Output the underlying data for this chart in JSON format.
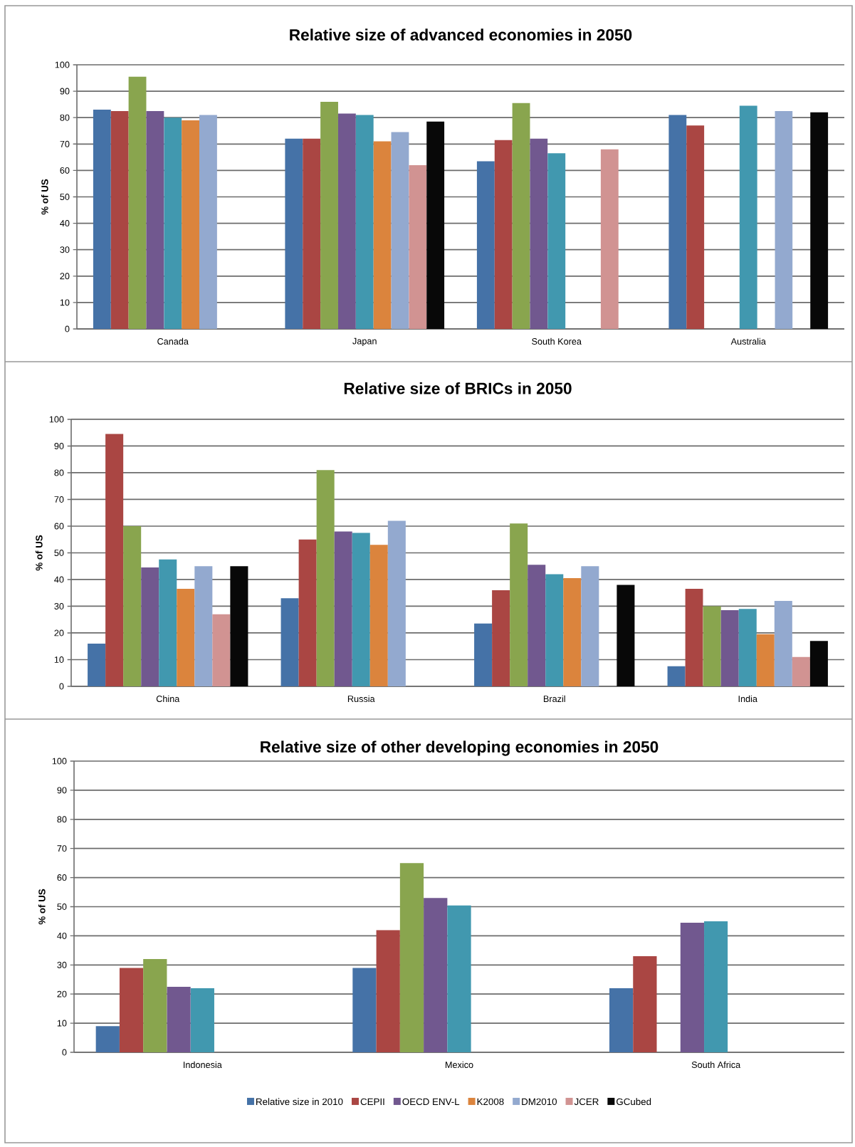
{
  "chart_data": [
    {
      "type": "bar",
      "title": "Relative size of advanced economies in 2050",
      "ylabel": "% of US",
      "categories": [
        "Canada",
        "Japan",
        "South Korea",
        "Australia"
      ],
      "ylim": [
        0,
        100
      ],
      "yticks": [
        0,
        10,
        20,
        30,
        40,
        50,
        60,
        70,
        80,
        90,
        100
      ],
      "grid": "y",
      "legend": false,
      "series": [
        {
          "color": "#4572a7",
          "values": [
            83,
            72,
            63.5,
            81
          ]
        },
        {
          "color": "#aa4643",
          "values": [
            82.5,
            72,
            71.5,
            77
          ]
        },
        {
          "color": "#89a54e",
          "values": [
            95.5,
            86,
            85.5,
            null
          ]
        },
        {
          "color": "#71588f",
          "values": [
            82.5,
            81.5,
            72,
            null
          ]
        },
        {
          "color": "#4198af",
          "values": [
            80,
            81,
            66.5,
            84.5
          ]
        },
        {
          "color": "#db843d",
          "values": [
            79,
            71,
            null,
            null
          ]
        },
        {
          "color": "#93a9cf",
          "values": [
            81,
            74.5,
            null,
            82.5
          ]
        },
        {
          "color": "#d19392",
          "values": [
            null,
            62,
            68,
            null
          ]
        },
        {
          "color": "#080808",
          "values": [
            null,
            78.5,
            null,
            82
          ]
        }
      ]
    },
    {
      "type": "bar",
      "title": "Relative size of BRICs in 2050",
      "ylabel": "% of US",
      "categories": [
        "China",
        "Russia",
        "Brazil",
        "India"
      ],
      "ylim": [
        0,
        100
      ],
      "yticks": [
        0,
        10,
        20,
        30,
        40,
        50,
        60,
        70,
        80,
        90,
        100
      ],
      "grid": "y",
      "legend": false,
      "series": [
        {
          "color": "#4572a7",
          "values": [
            16,
            33,
            23.5,
            7.5
          ]
        },
        {
          "color": "#aa4643",
          "values": [
            94.5,
            55,
            36,
            36.5
          ]
        },
        {
          "color": "#89a54e",
          "values": [
            60,
            81,
            61,
            30
          ]
        },
        {
          "color": "#71588f",
          "values": [
            44.5,
            58,
            45.5,
            28.5
          ]
        },
        {
          "color": "#4198af",
          "values": [
            47.5,
            57.5,
            42,
            29
          ]
        },
        {
          "color": "#db843d",
          "values": [
            36.5,
            53,
            40.5,
            19.5
          ]
        },
        {
          "color": "#93a9cf",
          "values": [
            45,
            62,
            45,
            32
          ]
        },
        {
          "color": "#d19392",
          "values": [
            27,
            null,
            null,
            11
          ]
        },
        {
          "color": "#080808",
          "values": [
            45,
            null,
            38,
            17
          ]
        }
      ]
    },
    {
      "type": "bar",
      "title": "Relative size of other developing economies in 2050",
      "ylabel": "% of US",
      "categories": [
        "Indonesia",
        "Mexico",
        "South Africa"
      ],
      "ylim": [
        0,
        100
      ],
      "yticks": [
        0,
        10,
        20,
        30,
        40,
        50,
        60,
        70,
        80,
        90,
        100
      ],
      "grid": "y",
      "legend": "bottom",
      "series": [
        {
          "name": "Relative size in 2010",
          "color": "#4572a7",
          "values": [
            9,
            29,
            22
          ]
        },
        {
          "name": "CEPII",
          "color": "#aa4643",
          "values": [
            29,
            42,
            33
          ]
        },
        {
          "color": "#89a54e",
          "values": [
            32,
            65,
            null
          ]
        },
        {
          "name": "OECD ENV-L",
          "color": "#71588f",
          "values": [
            22.5,
            53,
            44.5
          ]
        },
        {
          "color": "#4198af",
          "values": [
            22,
            50.5,
            45
          ]
        },
        {
          "name": "K2008",
          "color": "#db843d",
          "values": [
            null,
            null,
            null
          ]
        },
        {
          "name": "DM2010",
          "color": "#93a9cf",
          "values": [
            null,
            null,
            null
          ]
        },
        {
          "name": "JCER",
          "color": "#d19392",
          "values": [
            null,
            null,
            null
          ]
        },
        {
          "name": "GCubed",
          "color": "#080808",
          "values": [
            null,
            null,
            null
          ]
        }
      ]
    }
  ]
}
